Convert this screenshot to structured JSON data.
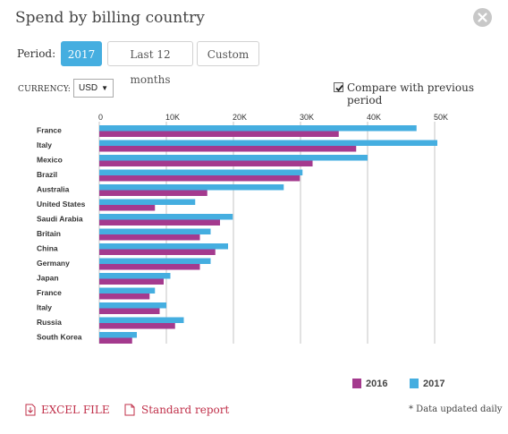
{
  "header": {
    "title": "Spend by billing country"
  },
  "period": {
    "label": "Period:",
    "options": [
      "2017",
      "Last 12 months",
      "Custom"
    ],
    "selected": "2017"
  },
  "currency": {
    "label": "CURRENCY:",
    "value": "USD"
  },
  "compare": {
    "label": "Compare with previous period",
    "checked": true
  },
  "chart_data": {
    "type": "bar",
    "orientation": "horizontal",
    "categories": [
      "France",
      "Italy",
      "Mexico",
      "Brazil",
      "Australia",
      "United States",
      "Saudi Arabia",
      "Britain",
      "China",
      "Germany",
      "Japan",
      "France",
      "Italy",
      "Russia",
      "South Korea"
    ],
    "series": [
      {
        "name": "2017",
        "color": "#45aee0",
        "values": [
          47300,
          50400,
          40000,
          30300,
          27500,
          14300,
          19900,
          16600,
          19200,
          16600,
          10600,
          8300,
          10000,
          12600,
          5600
        ]
      },
      {
        "name": "2016",
        "color": "#a43a8e",
        "values": [
          35700,
          38300,
          31800,
          29900,
          16100,
          8300,
          18000,
          15000,
          17300,
          15000,
          9600,
          7500,
          9000,
          11300,
          4900
        ]
      }
    ],
    "x_ticks": [
      "0",
      "10K",
      "20K",
      "30K",
      "40K",
      "50K"
    ],
    "xlim": [
      0,
      50000
    ],
    "grid": true,
    "legend_position": "bottom-right"
  },
  "links": {
    "excel": "EXCEL FILE",
    "report": "Standard report"
  },
  "footnote": "* Data updated daily"
}
